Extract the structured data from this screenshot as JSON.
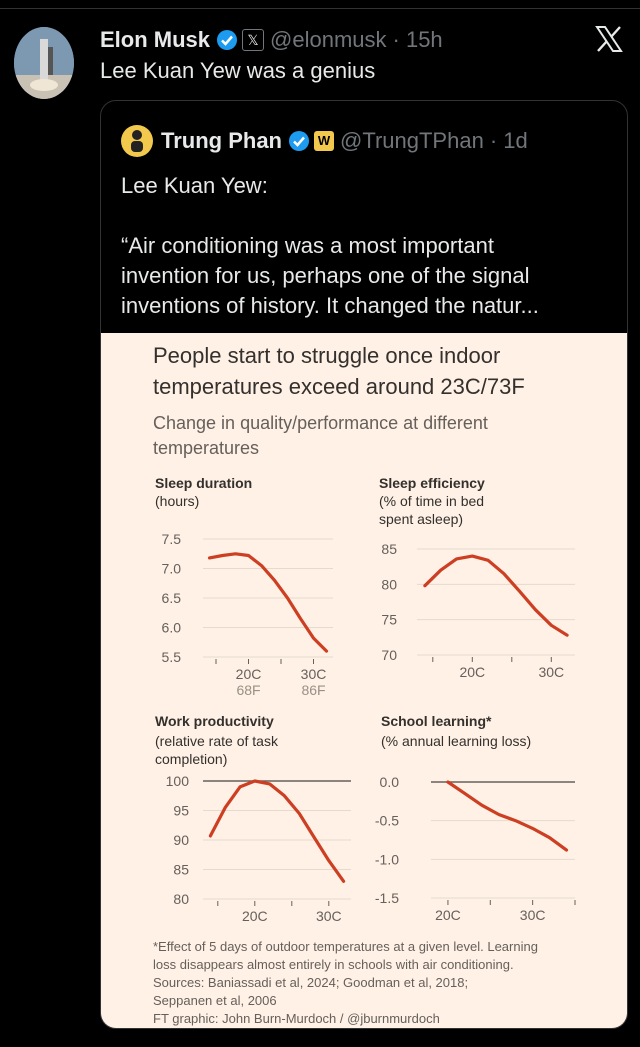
{
  "tweet": {
    "author_name": "Elon Musk",
    "author_handle": "@elonmusk",
    "time": "· 15h",
    "text": "Lee Kuan Yew was a genius",
    "x_badge": "𝕏"
  },
  "quote": {
    "author_name": "Trung Phan",
    "author_handle": "@TrungTPhan",
    "time": "· 1d",
    "badge": "W",
    "lines": [
      "Lee Kuan Yew:",
      "",
      "“Air conditioning was a most important",
      "invention for us, perhaps one of the signal",
      "inventions of history. It changed the natur..."
    ]
  },
  "graphic": {
    "title_lines": [
      "People start to struggle once indoor",
      "temperatures exceed around 23C/73F"
    ],
    "subtitle_lines": [
      "Change in quality/performance at different",
      "temperatures"
    ],
    "footnote_lines": [
      "*Effect of 5 days of outdoor temperatures at a given level. Learning",
      "loss disappears almost entirely in schools with air conditioning.",
      "Sources: Baniassadi et al, 2024; Goodman et al, 2018;",
      "Seppanen et al, 2006",
      "FT graphic: John Burn-Murdoch / @jburnmurdoch"
    ]
  },
  "colors": {
    "line": "#cc3f23",
    "background": "#fff1e5",
    "handle": "#71767b",
    "verified": "#1d9bf0"
  },
  "chart_data": [
    {
      "type": "line",
      "title": "Sleep duration",
      "subtitle_lines": [
        "(hours)"
      ],
      "x": [
        14,
        16,
        18,
        20,
        22,
        24,
        26,
        28,
        30,
        32
      ],
      "xticks": [
        {
          "label": "20C",
          "sub": "68F",
          "value": 20
        },
        {
          "label": "30C",
          "sub": "86F",
          "value": 30
        }
      ],
      "yticks": [
        "7.5",
        "7.0",
        "6.5",
        "6.0",
        "5.5"
      ],
      "ylim": [
        5.5,
        7.5
      ],
      "y": [
        7.18,
        7.22,
        7.25,
        7.22,
        7.05,
        6.8,
        6.5,
        6.15,
        5.82,
        5.6
      ]
    },
    {
      "type": "line",
      "title": "Sleep efficiency",
      "subtitle_lines": [
        "(% of time in bed",
        "spent asleep)"
      ],
      "x": [
        14,
        16,
        18,
        20,
        22,
        24,
        26,
        28,
        30,
        32
      ],
      "xticks": [
        {
          "label": "20C",
          "sub": "",
          "value": 20
        },
        {
          "label": "30C",
          "sub": "",
          "value": 30
        }
      ],
      "yticks": [
        "85",
        "80",
        "75",
        "70"
      ],
      "ylim": [
        70,
        85
      ],
      "y": [
        79.8,
        82.0,
        83.6,
        84.0,
        83.4,
        81.5,
        79.0,
        76.4,
        74.2,
        72.8
      ]
    },
    {
      "type": "line",
      "title": "Work productivity",
      "subtitle_lines": [
        "(relative rate of task",
        "completion)"
      ],
      "x": [
        14,
        16,
        18,
        20,
        22,
        24,
        26,
        28,
        30,
        32
      ],
      "xticks": [
        {
          "label": "20C",
          "sub": "",
          "value": 20
        },
        {
          "label": "30C",
          "sub": "",
          "value": 30
        }
      ],
      "yticks": [
        "100",
        "95",
        "90",
        "85",
        "80"
      ],
      "ylim": [
        80,
        100
      ],
      "refline": 100,
      "y": [
        90.7,
        95.5,
        99.0,
        100.0,
        99.5,
        97.5,
        94.5,
        90.5,
        86.5,
        83.0
      ]
    },
    {
      "type": "line",
      "title": "School learning*",
      "subtitle_lines": [
        "(% annual learning loss)"
      ],
      "x": [
        20,
        22,
        24,
        26,
        28,
        30,
        32,
        34
      ],
      "xticks": [
        {
          "label": "20C",
          "sub": "",
          "value": 20
        },
        {
          "label": "30C",
          "sub": "",
          "value": 30
        }
      ],
      "yticks": [
        "0.0",
        "-0.5",
        "-1.0",
        "-1.5"
      ],
      "ylim": [
        -1.5,
        0.0
      ],
      "refline": 0.0,
      "y": [
        0.0,
        -0.15,
        -0.3,
        -0.42,
        -0.5,
        -0.6,
        -0.72,
        -0.88
      ]
    }
  ]
}
